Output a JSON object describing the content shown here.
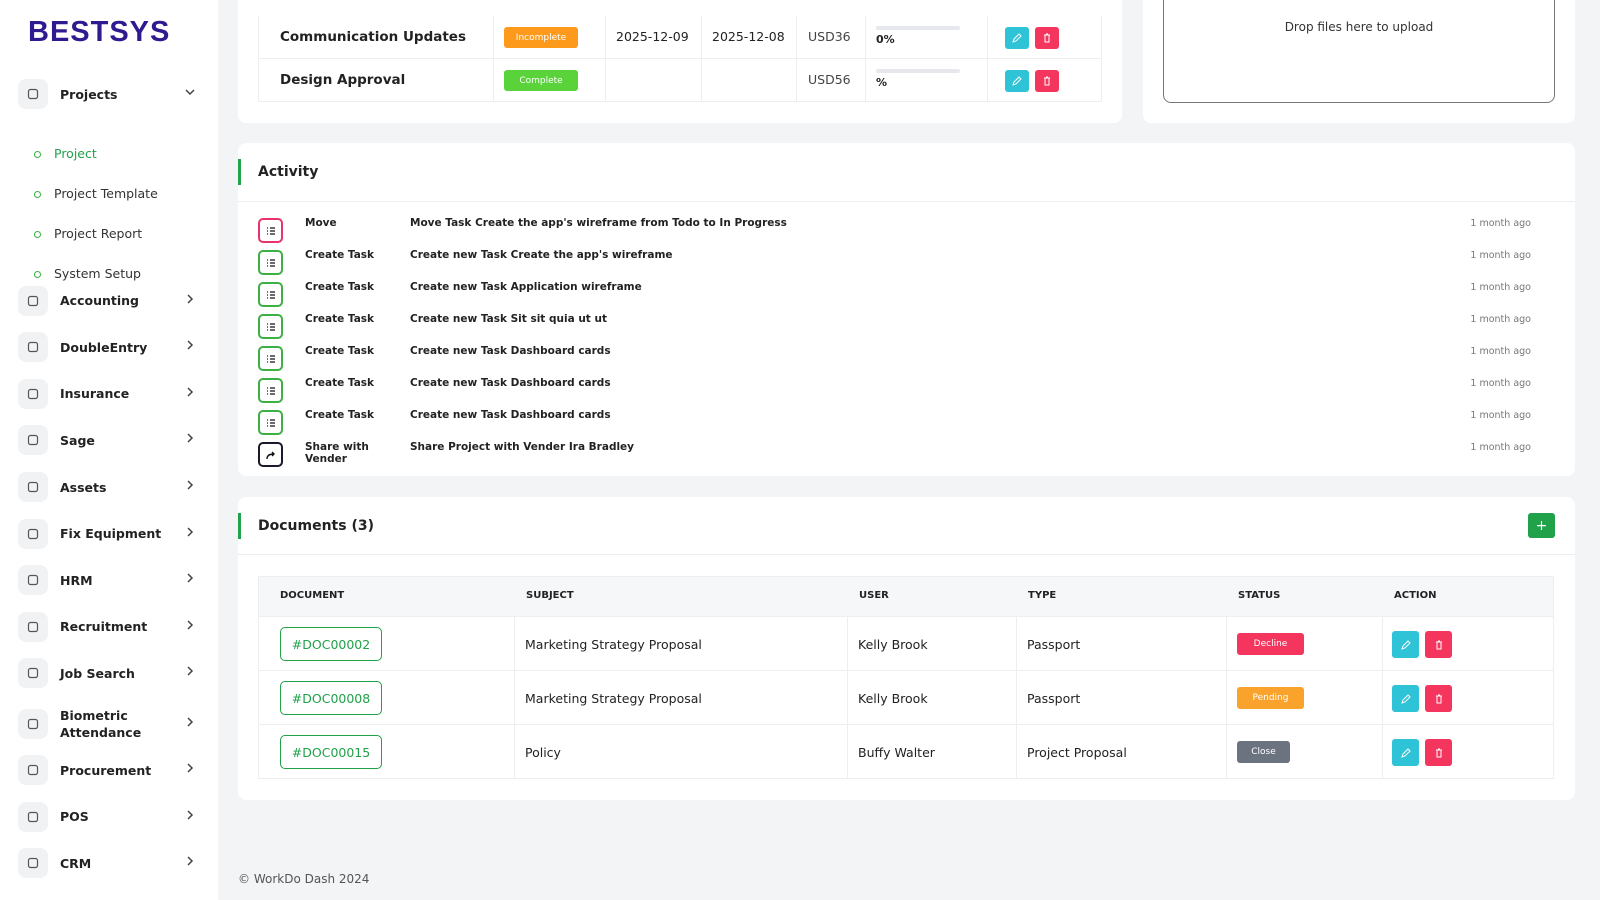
{
  "brand": "BESTSYS",
  "sidebar": {
    "items": [
      {
        "label": "Projects",
        "expanded": true,
        "children": [
          "Project",
          "Project Template",
          "Project Report",
          "System Setup"
        ]
      },
      {
        "label": "Accounting"
      },
      {
        "label": "DoubleEntry"
      },
      {
        "label": "Insurance"
      },
      {
        "label": "Sage"
      },
      {
        "label": "Assets"
      },
      {
        "label": "Fix Equipment"
      },
      {
        "label": "HRM"
      },
      {
        "label": "Recruitment"
      },
      {
        "label": "Job Search"
      },
      {
        "label": "Biometric Attendance"
      },
      {
        "label": "Procurement"
      },
      {
        "label": "POS"
      },
      {
        "label": "CRM"
      }
    ]
  },
  "tasks": {
    "rows": [
      {
        "name": "Communication Updates",
        "status": "Incomplete",
        "status_color": "#fd9a1c",
        "start": "2025-12-09",
        "end": "2025-12-08",
        "cost": "USD36",
        "progress": "0%"
      },
      {
        "name": "Design Approval",
        "status": "Complete",
        "status_color": "#5ad33b",
        "cost": "USD56",
        "progress": "%"
      }
    ]
  },
  "upload": {
    "text": "Drop files here to upload"
  },
  "activity": {
    "title": "Activity",
    "items": [
      {
        "type": "Move",
        "text": "Move Task Create the app's wireframe from Todo to In Progress",
        "time": "1 month ago",
        "icon_color": "#e8336b"
      },
      {
        "type": "Create Task",
        "text": "Create new Task Create the app's wireframe",
        "time": "1 month ago",
        "icon_color": "#3cb043"
      },
      {
        "type": "Create Task",
        "text": "Create new Task Application wireframe",
        "time": "1 month ago",
        "icon_color": "#3cb043"
      },
      {
        "type": "Create Task",
        "text": "Create new Task Sit sit quia ut ut",
        "time": "1 month ago",
        "icon_color": "#3cb043"
      },
      {
        "type": "Create Task",
        "text": "Create new Task Dashboard cards",
        "time": "1 month ago",
        "icon_color": "#3cb043"
      },
      {
        "type": "Create Task",
        "text": "Create new Task Dashboard cards",
        "time": "1 month ago",
        "icon_color": "#3cb043"
      },
      {
        "type": "Create Task",
        "text": "Create new Task Dashboard cards",
        "time": "1 month ago",
        "icon_color": "#3cb043"
      },
      {
        "type": "Share with Vender",
        "text": "Share Project with Vender Ira Bradley",
        "time": "1 month ago",
        "icon_color": "#1a1a2e"
      }
    ]
  },
  "documents": {
    "title": "Documents (3)",
    "add_label": "+",
    "headers": [
      "DOCUMENT",
      "SUBJECT",
      "USER",
      "TYPE",
      "STATUS",
      "ACTION"
    ],
    "rows": [
      {
        "document": "#DOC00002",
        "subject": "Marketing Strategy Proposal",
        "user": "Kelly Brook",
        "type": "Passport",
        "status": "Decline",
        "status_color": "#f4365e"
      },
      {
        "document": "#DOC00008",
        "subject": "Marketing Strategy Proposal",
        "user": "Kelly Brook",
        "type": "Passport",
        "status": "Pending",
        "status_color": "#f9a22c"
      },
      {
        "document": "#DOC00015",
        "subject": "Policy",
        "user": "Buffy Walter",
        "type": "Project Proposal",
        "status": "Close",
        "status_color": "#6b7280"
      }
    ]
  },
  "footer": "© WorkDo Dash 2024"
}
